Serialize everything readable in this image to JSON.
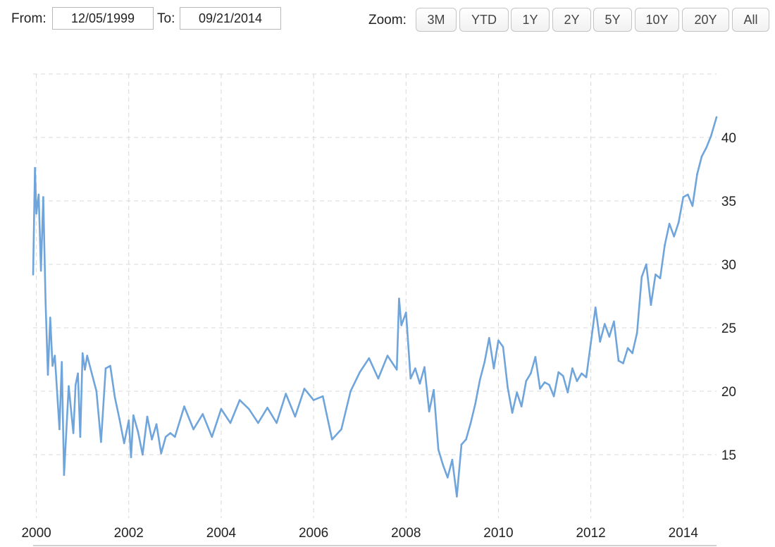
{
  "range_selector": {
    "from_label": "From:",
    "from_value": "12/05/1999",
    "to_label": "To:",
    "to_value": "09/21/2014",
    "zoom_label": "Zoom:",
    "zoom_buttons": [
      "3M",
      "YTD",
      "1Y",
      "2Y",
      "5Y",
      "10Y",
      "20Y",
      "All"
    ]
  },
  "colors": {
    "line": "#6fa5db",
    "grid": "#d8d8d8"
  },
  "chart_data": {
    "type": "line",
    "xlim": [
      1999.93,
      2014.72
    ],
    "ylim": [
      10,
      45
    ],
    "x_ticks": [
      2000,
      2002,
      2004,
      2006,
      2008,
      2010,
      2012,
      2014
    ],
    "x_tick_labels": [
      "2000",
      "2002",
      "2004",
      "2006",
      "2008",
      "2010",
      "2012",
      "2014"
    ],
    "y_ticks": [
      15,
      20,
      25,
      30,
      35,
      40
    ],
    "y_tick_labels": [
      "15",
      "20",
      "25",
      "30",
      "35",
      "40"
    ],
    "grid": true,
    "series": [
      {
        "x": [
          1999.93,
          1999.97,
          2000.0,
          2000.05,
          2000.1,
          2000.15,
          2000.2,
          2000.25,
          2000.3,
          2000.35,
          2000.4,
          2000.5,
          2000.55,
          2000.6,
          2000.7,
          2000.8,
          2000.85,
          2000.9,
          2000.95,
          2001.0,
          2001.05,
          2001.1,
          2001.2,
          2001.3,
          2001.4,
          2001.5,
          2001.6,
          2001.7,
          2001.8,
          2001.9,
          2002.0,
          2002.05,
          2002.1,
          2002.2,
          2002.3,
          2002.4,
          2002.5,
          2002.6,
          2002.7,
          2002.8,
          2002.9,
          2003.0,
          2003.2,
          2003.4,
          2003.6,
          2003.8,
          2004.0,
          2004.2,
          2004.4,
          2004.6,
          2004.8,
          2005.0,
          2005.2,
          2005.4,
          2005.6,
          2005.8,
          2006.0,
          2006.2,
          2006.4,
          2006.6,
          2006.8,
          2007.0,
          2007.2,
          2007.4,
          2007.6,
          2007.8,
          2007.85,
          2007.9,
          2008.0,
          2008.1,
          2008.2,
          2008.3,
          2008.4,
          2008.5,
          2008.6,
          2008.7,
          2008.8,
          2008.9,
          2009.0,
          2009.1,
          2009.2,
          2009.3,
          2009.4,
          2009.5,
          2009.6,
          2009.7,
          2009.8,
          2009.9,
          2010.0,
          2010.1,
          2010.2,
          2010.3,
          2010.4,
          2010.5,
          2010.6,
          2010.7,
          2010.8,
          2010.9,
          2011.0,
          2011.1,
          2011.2,
          2011.3,
          2011.4,
          2011.5,
          2011.6,
          2011.7,
          2011.8,
          2011.9,
          2012.0,
          2012.1,
          2012.2,
          2012.3,
          2012.4,
          2012.5,
          2012.6,
          2012.7,
          2012.8,
          2012.9,
          2013.0,
          2013.1,
          2013.2,
          2013.3,
          2013.4,
          2013.5,
          2013.6,
          2013.7,
          2013.8,
          2013.9,
          2014.0,
          2014.1,
          2014.2,
          2014.3,
          2014.4,
          2014.5,
          2014.6,
          2014.72
        ],
        "y": [
          29.2,
          37.6,
          34.0,
          35.5,
          29.5,
          35.3,
          27.0,
          21.3,
          25.8,
          22.0,
          22.8,
          17.0,
          22.3,
          13.4,
          20.4,
          16.7,
          20.5,
          21.4,
          16.4,
          23.0,
          21.7,
          22.8,
          21.4,
          20.0,
          16.0,
          21.8,
          22.0,
          19.5,
          17.8,
          15.9,
          17.7,
          14.8,
          18.1,
          16.8,
          15.0,
          18.0,
          16.2,
          17.4,
          15.1,
          16.4,
          16.7,
          16.4,
          18.8,
          17.0,
          18.2,
          16.4,
          18.6,
          17.5,
          19.3,
          18.6,
          17.5,
          18.7,
          17.5,
          19.8,
          18.0,
          20.2,
          19.3,
          19.6,
          16.2,
          17.0,
          20.0,
          21.5,
          22.6,
          21.0,
          22.8,
          21.7,
          27.3,
          25.2,
          26.2,
          21.0,
          21.8,
          20.6,
          21.9,
          18.4,
          20.1,
          15.4,
          14.2,
          13.2,
          14.6,
          11.7,
          15.8,
          16.2,
          17.5,
          19.0,
          20.9,
          22.3,
          24.2,
          21.8,
          24.0,
          23.5,
          20.3,
          18.3,
          19.9,
          18.8,
          20.8,
          21.4,
          22.7,
          20.2,
          20.7,
          20.5,
          19.6,
          21.5,
          21.2,
          19.9,
          21.8,
          20.8,
          21.4,
          21.1,
          23.8,
          26.6,
          23.9,
          25.3,
          24.3,
          25.5,
          22.4,
          22.2,
          23.4,
          23.0,
          24.6,
          29.0,
          30.0,
          26.8,
          29.2,
          28.9,
          31.5,
          33.2,
          32.2,
          33.3,
          35.3,
          35.5,
          34.6,
          37.1,
          38.5,
          39.2,
          40.1,
          41.6
        ]
      }
    ]
  }
}
